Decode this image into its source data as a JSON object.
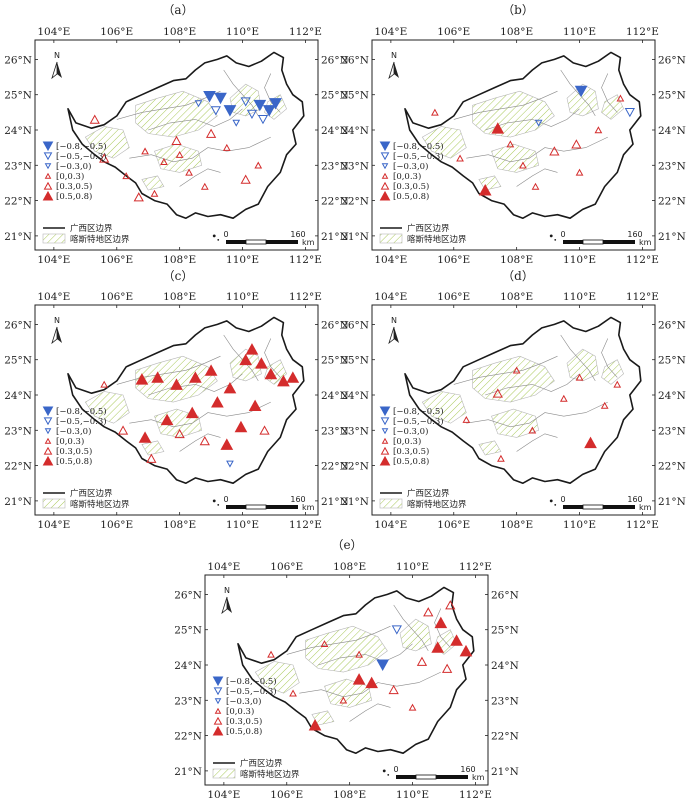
{
  "panels": [
    {
      "label": "（a）",
      "markers": [
        {
          "lon": 108.95,
          "lat": 24.95,
          "cls": 0
        },
        {
          "lon": 109.3,
          "lat": 24.9,
          "cls": 0
        },
        {
          "lon": 109.6,
          "lat": 24.55,
          "cls": 0
        },
        {
          "lon": 110.55,
          "lat": 24.7,
          "cls": 0
        },
        {
          "lon": 110.85,
          "lat": 24.55,
          "cls": 0
        },
        {
          "lon": 111.05,
          "lat": 24.75,
          "cls": 0
        },
        {
          "lon": 109.15,
          "lat": 24.55,
          "cls": 1
        },
        {
          "lon": 110.3,
          "lat": 24.45,
          "cls": 1
        },
        {
          "lon": 110.65,
          "lat": 24.3,
          "cls": 1
        },
        {
          "lon": 110.1,
          "lat": 24.8,
          "cls": 1
        },
        {
          "lon": 108.6,
          "lat": 24.75,
          "cls": 2
        },
        {
          "lon": 109.8,
          "lat": 24.2,
          "cls": 2
        },
        {
          "lon": 106.9,
          "lat": 23.4,
          "cls": 3
        },
        {
          "lon": 107.5,
          "lat": 23.1,
          "cls": 3
        },
        {
          "lon": 108.3,
          "lat": 22.8,
          "cls": 3
        },
        {
          "lon": 108.0,
          "lat": 23.3,
          "cls": 3
        },
        {
          "lon": 109.5,
          "lat": 23.5,
          "cls": 3
        },
        {
          "lon": 106.3,
          "lat": 22.7,
          "cls": 3
        },
        {
          "lon": 107.2,
          "lat": 22.2,
          "cls": 3
        },
        {
          "lon": 108.8,
          "lat": 22.4,
          "cls": 3
        },
        {
          "lon": 110.5,
          "lat": 23.0,
          "cls": 3
        },
        {
          "lon": 105.6,
          "lat": 23.2,
          "cls": 4
        },
        {
          "lon": 107.9,
          "lat": 23.7,
          "cls": 4
        },
        {
          "lon": 106.7,
          "lat": 22.1,
          "cls": 4
        },
        {
          "lon": 110.1,
          "lat": 22.6,
          "cls": 4
        },
        {
          "lon": 105.3,
          "lat": 24.3,
          "cls": 4
        },
        {
          "lon": 109.0,
          "lat": 23.9,
          "cls": 4
        }
      ]
    },
    {
      "label": "（b）",
      "markers": [
        {
          "lon": 110.05,
          "lat": 25.1,
          "cls": 0
        },
        {
          "lon": 111.6,
          "lat": 24.5,
          "cls": 1
        },
        {
          "lon": 108.7,
          "lat": 24.2,
          "cls": 2
        },
        {
          "lon": 107.4,
          "lat": 24.05,
          "cls": 5
        },
        {
          "lon": 107.0,
          "lat": 22.3,
          "cls": 5
        },
        {
          "lon": 109.2,
          "lat": 23.4,
          "cls": 4
        },
        {
          "lon": 106.2,
          "lat": 23.2,
          "cls": 3
        },
        {
          "lon": 108.2,
          "lat": 23.0,
          "cls": 3
        },
        {
          "lon": 110.0,
          "lat": 22.8,
          "cls": 3
        },
        {
          "lon": 111.3,
          "lat": 24.9,
          "cls": 3
        },
        {
          "lon": 105.4,
          "lat": 24.5,
          "cls": 3
        },
        {
          "lon": 108.6,
          "lat": 22.4,
          "cls": 3
        },
        {
          "lon": 109.9,
          "lat": 23.6,
          "cls": 4
        },
        {
          "lon": 110.6,
          "lat": 24.0,
          "cls": 3
        },
        {
          "lon": 107.8,
          "lat": 23.6,
          "cls": 3
        }
      ]
    },
    {
      "label": "（c）",
      "markers": [
        {
          "lon": 106.8,
          "lat": 24.45,
          "cls": 5
        },
        {
          "lon": 107.3,
          "lat": 24.5,
          "cls": 5
        },
        {
          "lon": 107.9,
          "lat": 24.3,
          "cls": 5
        },
        {
          "lon": 108.5,
          "lat": 24.5,
          "cls": 5
        },
        {
          "lon": 109.0,
          "lat": 24.7,
          "cls": 5
        },
        {
          "lon": 109.6,
          "lat": 24.2,
          "cls": 5
        },
        {
          "lon": 110.1,
          "lat": 25.0,
          "cls": 5
        },
        {
          "lon": 110.3,
          "lat": 25.3,
          "cls": 5
        },
        {
          "lon": 110.9,
          "lat": 24.6,
          "cls": 5
        },
        {
          "lon": 111.3,
          "lat": 24.4,
          "cls": 5
        },
        {
          "lon": 111.6,
          "lat": 24.5,
          "cls": 5
        },
        {
          "lon": 110.6,
          "lat": 24.9,
          "cls": 5
        },
        {
          "lon": 109.95,
          "lat": 23.1,
          "cls": 5
        },
        {
          "lon": 107.6,
          "lat": 23.3,
          "cls": 5
        },
        {
          "lon": 108.4,
          "lat": 23.5,
          "cls": 5
        },
        {
          "lon": 109.2,
          "lat": 23.8,
          "cls": 5
        },
        {
          "lon": 106.9,
          "lat": 22.8,
          "cls": 5
        },
        {
          "lon": 109.5,
          "lat": 22.6,
          "cls": 5
        },
        {
          "lon": 110.4,
          "lat": 23.7,
          "cls": 5
        },
        {
          "lon": 108.0,
          "lat": 22.9,
          "cls": 4
        },
        {
          "lon": 108.8,
          "lat": 22.7,
          "cls": 4
        },
        {
          "lon": 106.2,
          "lat": 23.0,
          "cls": 4
        },
        {
          "lon": 110.7,
          "lat": 23.0,
          "cls": 4
        },
        {
          "lon": 107.1,
          "lat": 22.2,
          "cls": 4
        },
        {
          "lon": 105.6,
          "lat": 24.3,
          "cls": 3
        },
        {
          "lon": 109.6,
          "lat": 22.05,
          "cls": 2
        }
      ]
    },
    {
      "label": "（d）",
      "markers": [
        {
          "lon": 110.35,
          "lat": 22.65,
          "cls": 5
        },
        {
          "lon": 107.4,
          "lat": 24.05,
          "cls": 4
        },
        {
          "lon": 110.0,
          "lat": 24.5,
          "cls": 3
        },
        {
          "lon": 108.5,
          "lat": 23.0,
          "cls": 3
        },
        {
          "lon": 107.5,
          "lat": 22.2,
          "cls": 3
        },
        {
          "lon": 111.2,
          "lat": 24.3,
          "cls": 3
        },
        {
          "lon": 109.5,
          "lat": 23.9,
          "cls": 3
        },
        {
          "lon": 106.4,
          "lat": 23.3,
          "cls": 3
        },
        {
          "lon": 108.0,
          "lat": 24.7,
          "cls": 3
        },
        {
          "lon": 110.8,
          "lat": 23.7,
          "cls": 3
        }
      ]
    },
    {
      "label": "（e）",
      "markers": [
        {
          "lon": 109.05,
          "lat": 24.0,
          "cls": 0
        },
        {
          "lon": 109.5,
          "lat": 25.0,
          "cls": 1
        },
        {
          "lon": 107.2,
          "lat": 24.6,
          "cls": 3
        },
        {
          "lon": 108.3,
          "lat": 24.3,
          "cls": 3
        },
        {
          "lon": 110.9,
          "lat": 25.2,
          "cls": 5
        },
        {
          "lon": 111.4,
          "lat": 24.7,
          "cls": 5
        },
        {
          "lon": 110.8,
          "lat": 24.5,
          "cls": 5
        },
        {
          "lon": 111.7,
          "lat": 24.4,
          "cls": 5
        },
        {
          "lon": 108.7,
          "lat": 23.5,
          "cls": 5
        },
        {
          "lon": 106.9,
          "lat": 22.3,
          "cls": 5
        },
        {
          "lon": 108.3,
          "lat": 23.6,
          "cls": 5
        },
        {
          "lon": 110.3,
          "lat": 24.1,
          "cls": 4
        },
        {
          "lon": 111.1,
          "lat": 23.9,
          "cls": 4
        },
        {
          "lon": 111.2,
          "lat": 25.7,
          "cls": 4
        },
        {
          "lon": 106.2,
          "lat": 23.2,
          "cls": 3
        },
        {
          "lon": 107.8,
          "lat": 23.0,
          "cls": 3
        },
        {
          "lon": 110.0,
          "lat": 22.8,
          "cls": 3
        },
        {
          "lon": 105.5,
          "lat": 24.3,
          "cls": 3
        },
        {
          "lon": 109.4,
          "lat": 23.3,
          "cls": 4
        },
        {
          "lon": 110.5,
          "lat": 25.5,
          "cls": 4
        }
      ]
    }
  ],
  "lon_ticks": [
    "104°E",
    "106°E",
    "108°E",
    "110°E",
    "112°E"
  ],
  "lat_ticks": [
    "26°N",
    "25°N",
    "24°N",
    "23°N",
    "22°N",
    "21°N"
  ],
  "lon_values": [
    104,
    106,
    108,
    110,
    112
  ],
  "lat_values": [
    26,
    25,
    24,
    23,
    22,
    21
  ],
  "legend": {
    "classes": [
      {
        "label": "[−0.8,−0.5)",
        "color": "#3a66c8",
        "dir": "down",
        "size": 1.0
      },
      {
        "label": "[−0.5,−0.3)",
        "color": "#3a66c8",
        "dir": "down",
        "size": 0.78
      },
      {
        "label": "[−0.3,0)",
        "color": "#3a66c8",
        "dir": "down",
        "size": 0.55
      },
      {
        "label": "[0,0.3)",
        "color": "#d42c2c",
        "dir": "up",
        "size": 0.55
      },
      {
        "label": "[0.3,0.5)",
        "color": "#d42c2c",
        "dir": "up",
        "size": 0.78
      },
      {
        "label": "[0.5,0.8)",
        "color": "#d42c2c",
        "dir": "up",
        "size": 1.0
      }
    ],
    "boundary_label": "广西区边界",
    "karst_label": "喀斯特地区边界"
  },
  "scale": {
    "zero": "0",
    "value": "160",
    "unit": "km"
  },
  "north": "N",
  "colors": {
    "blue": "#3a66c8",
    "red": "#d42c2c",
    "karst_hatch": "#a9c95a",
    "boundary": "#1a1a1a",
    "rivers": "#8a8a8a"
  }
}
